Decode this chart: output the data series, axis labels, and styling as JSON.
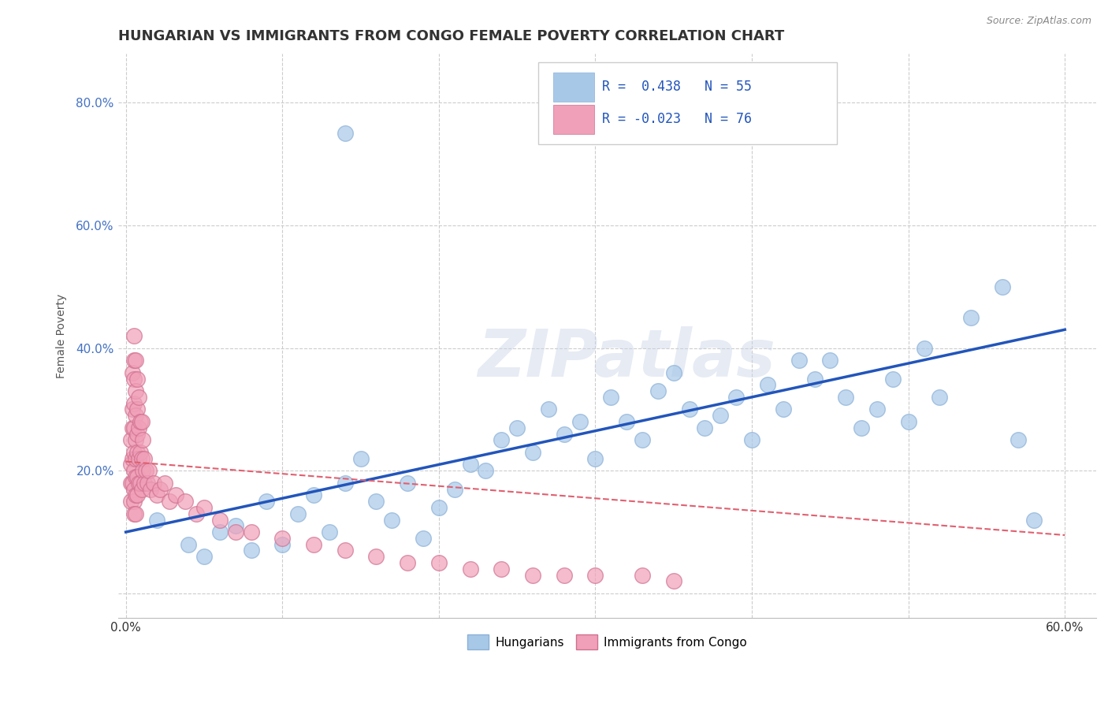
{
  "title": "HUNGARIAN VS IMMIGRANTS FROM CONGO FEMALE POVERTY CORRELATION CHART",
  "source": "Source: ZipAtlas.com",
  "xlabel": "",
  "ylabel": "Female Poverty",
  "xlim": [
    -0.005,
    0.62
  ],
  "ylim": [
    -0.04,
    0.88
  ],
  "xticks": [
    0.0,
    0.1,
    0.2,
    0.3,
    0.4,
    0.5,
    0.6
  ],
  "xticklabels": [
    "0.0%",
    "",
    "",
    "",
    "",
    "",
    "60.0%"
  ],
  "yticks": [
    0.0,
    0.2,
    0.4,
    0.6,
    0.8
  ],
  "yticklabels": [
    "",
    "20.0%",
    "40.0%",
    "60.0%",
    "80.0%"
  ],
  "blue_color": "#a8c8e8",
  "pink_color": "#f0a0b8",
  "blue_line_color": "#2255bb",
  "pink_line_color": "#e06070",
  "watermark": "ZIPatlas",
  "grid_color": "#cccccc",
  "blue_scatter_x": [
    0.02,
    0.04,
    0.05,
    0.06,
    0.07,
    0.08,
    0.09,
    0.1,
    0.11,
    0.12,
    0.13,
    0.14,
    0.15,
    0.16,
    0.17,
    0.18,
    0.19,
    0.2,
    0.21,
    0.22,
    0.23,
    0.24,
    0.25,
    0.26,
    0.27,
    0.28,
    0.29,
    0.3,
    0.31,
    0.32,
    0.33,
    0.34,
    0.35,
    0.36,
    0.37,
    0.38,
    0.39,
    0.4,
    0.41,
    0.42,
    0.43,
    0.44,
    0.45,
    0.46,
    0.47,
    0.48,
    0.49,
    0.5,
    0.51,
    0.52,
    0.54,
    0.56,
    0.57,
    0.58,
    0.14
  ],
  "blue_scatter_y": [
    0.12,
    0.08,
    0.06,
    0.1,
    0.11,
    0.07,
    0.15,
    0.08,
    0.13,
    0.16,
    0.1,
    0.18,
    0.22,
    0.15,
    0.12,
    0.18,
    0.09,
    0.14,
    0.17,
    0.21,
    0.2,
    0.25,
    0.27,
    0.23,
    0.3,
    0.26,
    0.28,
    0.22,
    0.32,
    0.28,
    0.25,
    0.33,
    0.36,
    0.3,
    0.27,
    0.29,
    0.32,
    0.25,
    0.34,
    0.3,
    0.38,
    0.35,
    0.38,
    0.32,
    0.27,
    0.3,
    0.35,
    0.28,
    0.4,
    0.32,
    0.45,
    0.5,
    0.25,
    0.12,
    0.75
  ],
  "pink_scatter_x": [
    0.003,
    0.003,
    0.003,
    0.003,
    0.004,
    0.004,
    0.004,
    0.004,
    0.004,
    0.005,
    0.005,
    0.005,
    0.005,
    0.005,
    0.005,
    0.005,
    0.005,
    0.005,
    0.005,
    0.006,
    0.006,
    0.006,
    0.006,
    0.006,
    0.006,
    0.006,
    0.006,
    0.007,
    0.007,
    0.007,
    0.007,
    0.007,
    0.007,
    0.008,
    0.008,
    0.008,
    0.008,
    0.009,
    0.009,
    0.009,
    0.01,
    0.01,
    0.01,
    0.011,
    0.011,
    0.012,
    0.012,
    0.013,
    0.014,
    0.015,
    0.016,
    0.018,
    0.02,
    0.022,
    0.025,
    0.028,
    0.032,
    0.038,
    0.045,
    0.05,
    0.06,
    0.07,
    0.08,
    0.1,
    0.12,
    0.14,
    0.16,
    0.18,
    0.2,
    0.22,
    0.24,
    0.26,
    0.28,
    0.3,
    0.33,
    0.35
  ],
  "pink_scatter_y": [
    0.25,
    0.21,
    0.18,
    0.15,
    0.36,
    0.3,
    0.27,
    0.22,
    0.18,
    0.42,
    0.38,
    0.35,
    0.31,
    0.27,
    0.23,
    0.2,
    0.17,
    0.15,
    0.13,
    0.38,
    0.33,
    0.29,
    0.25,
    0.22,
    0.19,
    0.16,
    0.13,
    0.35,
    0.3,
    0.26,
    0.23,
    0.19,
    0.16,
    0.32,
    0.27,
    0.22,
    0.18,
    0.28,
    0.23,
    0.18,
    0.28,
    0.22,
    0.17,
    0.25,
    0.2,
    0.22,
    0.18,
    0.2,
    0.18,
    0.2,
    0.17,
    0.18,
    0.16,
    0.17,
    0.18,
    0.15,
    0.16,
    0.15,
    0.13,
    0.14,
    0.12,
    0.1,
    0.1,
    0.09,
    0.08,
    0.07,
    0.06,
    0.05,
    0.05,
    0.04,
    0.04,
    0.03,
    0.03,
    0.03,
    0.03,
    0.02
  ],
  "blue_trend_x": [
    0.0,
    0.6
  ],
  "blue_trend_y": [
    0.1,
    0.43
  ],
  "pink_trend_x": [
    0.0,
    0.6
  ],
  "pink_trend_y": [
    0.215,
    0.095
  ],
  "background_color": "#ffffff",
  "title_fontsize": 13,
  "axis_label_fontsize": 10,
  "tick_fontsize": 11,
  "legend_fontsize": 12
}
